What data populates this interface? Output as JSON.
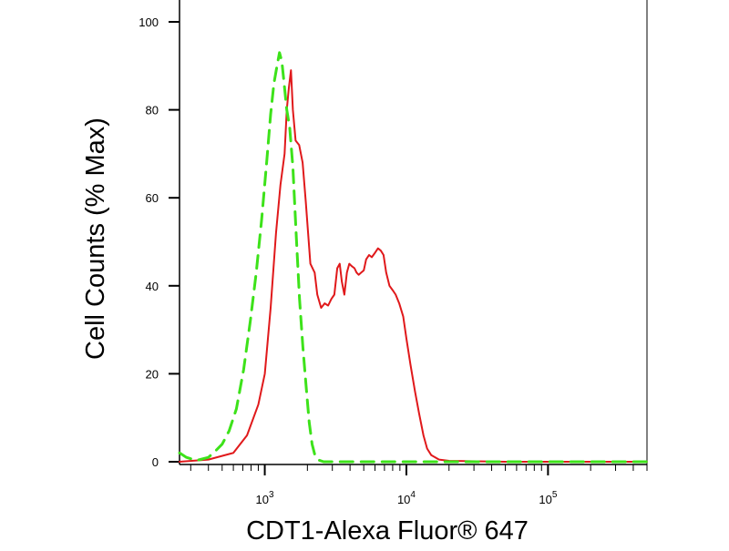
{
  "chart_data": {
    "type": "line",
    "title": "",
    "xlabel": "CDT1-Alexa Fluor® 647",
    "ylabel": "Cell Counts (% Max)",
    "x_scale": "log",
    "xlim": [
      250,
      500000
    ],
    "ylim": [
      0,
      100
    ],
    "xticks": [
      {
        "value": 1000,
        "base": "10",
        "exp": "3"
      },
      {
        "value": 10000,
        "base": "10",
        "exp": "4"
      },
      {
        "value": 100000,
        "base": "10",
        "exp": "5"
      }
    ],
    "yticks": [
      {
        "value": 0,
        "label": "0"
      },
      {
        "value": 20,
        "label": "20"
      },
      {
        "value": 40,
        "label": "40"
      },
      {
        "value": 60,
        "label": "60"
      },
      {
        "value": 80,
        "label": "80"
      },
      {
        "value": 100,
        "label": "100"
      }
    ],
    "grid": false,
    "legend": "none",
    "series": [
      {
        "color": "#e0191b",
        "line_style": "solid",
        "points": [
          [
            250,
            0
          ],
          [
            400,
            0.5
          ],
          [
            600,
            2
          ],
          [
            750,
            6
          ],
          [
            900,
            13
          ],
          [
            1000,
            20
          ],
          [
            1100,
            35
          ],
          [
            1200,
            52
          ],
          [
            1290,
            63
          ],
          [
            1380,
            70
          ],
          [
            1430,
            80
          ],
          [
            1480,
            85
          ],
          [
            1530,
            89
          ],
          [
            1580,
            80
          ],
          [
            1650,
            73
          ],
          [
            1750,
            72
          ],
          [
            1850,
            68
          ],
          [
            1950,
            59
          ],
          [
            2100,
            45
          ],
          [
            2250,
            43
          ],
          [
            2350,
            38
          ],
          [
            2500,
            35
          ],
          [
            2650,
            36
          ],
          [
            2800,
            35.5
          ],
          [
            2950,
            37
          ],
          [
            3100,
            38
          ],
          [
            3250,
            44
          ],
          [
            3380,
            45
          ],
          [
            3500,
            41
          ],
          [
            3650,
            38
          ],
          [
            3800,
            43
          ],
          [
            3950,
            45
          ],
          [
            4100,
            44.5
          ],
          [
            4300,
            44
          ],
          [
            4450,
            43
          ],
          [
            4600,
            42.5
          ],
          [
            4800,
            43
          ],
          [
            5000,
            43.5
          ],
          [
            5200,
            46
          ],
          [
            5450,
            47
          ],
          [
            5700,
            46.5
          ],
          [
            6000,
            47.5
          ],
          [
            6300,
            48.5
          ],
          [
            6600,
            48
          ],
          [
            6900,
            47
          ],
          [
            7200,
            43
          ],
          [
            7600,
            40
          ],
          [
            8000,
            39
          ],
          [
            8400,
            38
          ],
          [
            8900,
            36
          ],
          [
            9500,
            33
          ],
          [
            10000,
            28
          ],
          [
            10700,
            22
          ],
          [
            11500,
            16
          ],
          [
            12300,
            11
          ],
          [
            13200,
            6
          ],
          [
            14000,
            3
          ],
          [
            15000,
            1.5
          ],
          [
            17000,
            0.5
          ],
          [
            20000,
            0.2
          ],
          [
            50000,
            0
          ],
          [
            500000,
            0
          ]
        ]
      },
      {
        "color": "#3de21a",
        "line_style": "dashed",
        "points": [
          [
            250,
            2
          ],
          [
            280,
            1
          ],
          [
            330,
            0.3
          ],
          [
            400,
            1
          ],
          [
            450,
            2.5
          ],
          [
            500,
            4
          ],
          [
            560,
            7
          ],
          [
            630,
            12
          ],
          [
            710,
            21
          ],
          [
            790,
            32
          ],
          [
            870,
            43
          ],
          [
            950,
            55
          ],
          [
            1030,
            68
          ],
          [
            1100,
            79
          ],
          [
            1160,
            86
          ],
          [
            1220,
            90
          ],
          [
            1270,
            93
          ],
          [
            1320,
            91
          ],
          [
            1370,
            86
          ],
          [
            1430,
            80
          ],
          [
            1500,
            76
          ],
          [
            1580,
            67
          ],
          [
            1670,
            51
          ],
          [
            1760,
            37
          ],
          [
            1860,
            26
          ],
          [
            1960,
            17
          ],
          [
            2060,
            9
          ],
          [
            2160,
            4
          ],
          [
            2260,
            1.5
          ],
          [
            2400,
            0.4
          ],
          [
            2600,
            0
          ],
          [
            500000,
            0
          ]
        ]
      }
    ]
  }
}
